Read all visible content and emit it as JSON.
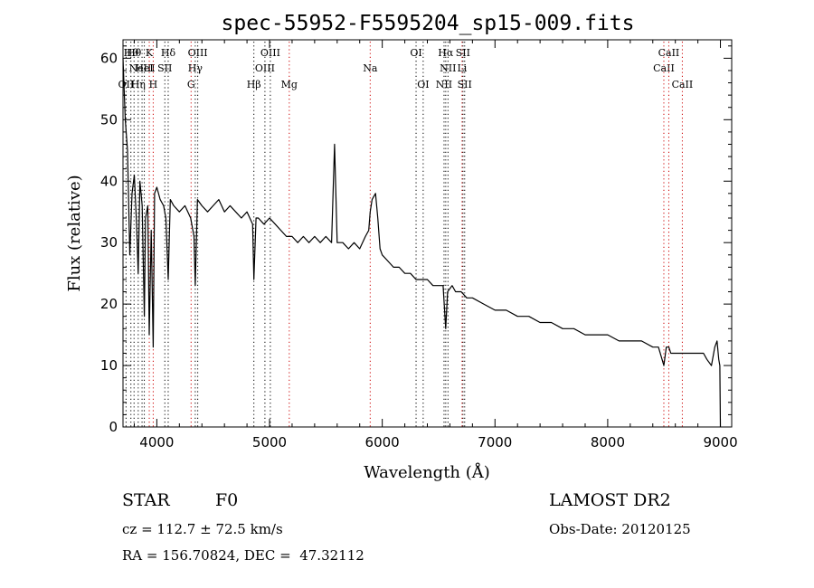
{
  "chart_data": {
    "type": "line",
    "title": "spec-55952-F5595204_sp15-009.fits",
    "xlabel": "Wavelength (Å)",
    "ylabel": "Flux (relative)",
    "xlim": [
      3700,
      9100
    ],
    "ylim": [
      0,
      63
    ],
    "xticks": [
      4000,
      5000,
      6000,
      7000,
      8000,
      9000
    ],
    "yticks": [
      0,
      10,
      20,
      30,
      40,
      50,
      60
    ],
    "grid": false,
    "series": [
      {
        "x": [
          3700,
          3720,
          3740,
          3760,
          3780,
          3800,
          3820,
          3835,
          3850,
          3870,
          3889,
          3900,
          3920,
          3933,
          3950,
          3968,
          3980,
          4000,
          4030,
          4060,
          4080,
          4101,
          4120,
          4150,
          4200,
          4250,
          4300,
          4330,
          4341,
          4360,
          4400,
          4450,
          4500,
          4550,
          4600,
          4650,
          4700,
          4750,
          4800,
          4850,
          4861,
          4880,
          4900,
          4950,
          5000,
          5050,
          5100,
          5150,
          5200,
          5250,
          5300,
          5350,
          5400,
          5450,
          5500,
          5550,
          5577,
          5600,
          5650,
          5700,
          5750,
          5800,
          5850,
          5880,
          5893,
          5910,
          5940,
          5960,
          5980,
          6000,
          6050,
          6100,
          6150,
          6200,
          6250,
          6300,
          6350,
          6400,
          6450,
          6500,
          6540,
          6563,
          6580,
          6620,
          6650,
          6700,
          6750,
          6800,
          6900,
          7000,
          7100,
          7200,
          7300,
          7400,
          7500,
          7600,
          7700,
          7800,
          7900,
          8000,
          8100,
          8200,
          8300,
          8400,
          8450,
          8498,
          8520,
          8542,
          8560,
          8600,
          8662,
          8700,
          8750,
          8800,
          8850,
          8880,
          8920,
          8950,
          8970,
          8985,
          8995,
          9000
        ],
        "y": [
          60,
          50,
          45,
          28,
          38,
          41,
          33,
          25,
          40,
          36,
          18,
          34,
          36,
          15,
          32,
          13,
          38,
          39,
          37,
          36,
          34,
          24,
          37,
          36,
          35,
          36,
          34,
          31,
          23,
          37,
          36,
          35,
          36,
          37,
          35,
          36,
          35,
          34,
          35,
          33,
          24,
          34,
          34,
          33,
          34,
          33,
          32,
          31,
          31,
          30,
          31,
          30,
          31,
          30,
          31,
          30,
          46,
          30,
          30,
          29,
          30,
          29,
          31,
          32,
          35,
          37,
          38,
          34,
          29,
          28,
          27,
          26,
          26,
          25,
          25,
          24,
          24,
          24,
          23,
          23,
          23,
          16,
          22,
          23,
          22,
          22,
          21,
          21,
          20,
          19,
          19,
          18,
          18,
          17,
          17,
          16,
          16,
          15,
          15,
          15,
          14,
          14,
          14,
          13,
          13,
          10,
          13,
          13,
          12,
          12,
          12,
          12,
          12,
          12,
          12,
          11,
          10,
          13,
          14,
          11,
          10,
          0
        ]
      }
    ],
    "lines": [
      {
        "x": 3727,
        "labels": [
          "OII"
        ],
        "row": 2,
        "color": "#000000"
      },
      {
        "x": 3770,
        "labels": [
          "Hθ"
        ],
        "row": 0,
        "color": "#000000"
      },
      {
        "x": 3798,
        "labels": [
          "Hθ"
        ],
        "row": 0,
        "color": "#000000"
      },
      {
        "x": 3835,
        "labels": [
          "Hη"
        ],
        "row": 2,
        "color": "#000000"
      },
      {
        "x": 3869,
        "labels": [
          "NeIII"
        ],
        "row": 1,
        "color": "#000000"
      },
      {
        "x": 3889,
        "labels": [
          "HeI"
        ],
        "row": 1,
        "color": "#000000"
      },
      {
        "x": 3933,
        "labels": [
          "K"
        ],
        "row": 0,
        "color": "#cc0000"
      },
      {
        "x": 3968,
        "labels": [
          "H"
        ],
        "row": 2,
        "color": "#cc0000"
      },
      {
        "x": 4071,
        "labels": [
          "SII"
        ],
        "row": 1,
        "color": "#000000"
      },
      {
        "x": 4101,
        "labels": [
          "Hδ"
        ],
        "row": 0,
        "color": "#000000"
      },
      {
        "x": 4304,
        "labels": [
          "G"
        ],
        "row": 2,
        "color": "#cc0000"
      },
      {
        "x": 4341,
        "labels": [
          "Hγ"
        ],
        "row": 1,
        "color": "#000000"
      },
      {
        "x": 4363,
        "labels": [
          "OIII"
        ],
        "row": 0,
        "color": "#000000"
      },
      {
        "x": 4861,
        "labels": [
          "Hβ"
        ],
        "row": 2,
        "color": "#000000"
      },
      {
        "x": 4959,
        "labels": [
          "OIII"
        ],
        "row": 1,
        "color": "#000000"
      },
      {
        "x": 5007,
        "labels": [
          "OIII"
        ],
        "row": 0,
        "color": "#000000"
      },
      {
        "x": 5175,
        "labels": [
          "Mg"
        ],
        "row": 2,
        "color": "#cc0000"
      },
      {
        "x": 5893,
        "labels": [
          "Na"
        ],
        "row": 1,
        "color": "#cc0000"
      },
      {
        "x": 6300,
        "labels": [
          "OI"
        ],
        "row": 0,
        "color": "#000000"
      },
      {
        "x": 6363,
        "labels": [
          "OI"
        ],
        "row": 2,
        "color": "#000000"
      },
      {
        "x": 6548,
        "labels": [
          "NII"
        ],
        "row": 2,
        "color": "#000000"
      },
      {
        "x": 6563,
        "labels": [
          "Hα"
        ],
        "row": 0,
        "color": "#000000"
      },
      {
        "x": 6583,
        "labels": [
          "NII"
        ],
        "row": 1,
        "color": "#000000"
      },
      {
        "x": 6708,
        "labels": [
          "Li"
        ],
        "row": 1,
        "color": "#cc0000"
      },
      {
        "x": 6716,
        "labels": [
          "SII"
        ],
        "row": 0,
        "color": "#000000"
      },
      {
        "x": 6731,
        "labels": [
          "SII"
        ],
        "row": 2,
        "color": "#000000"
      },
      {
        "x": 8498,
        "labels": [
          "CaII"
        ],
        "row": 1,
        "color": "#cc0000"
      },
      {
        "x": 8542,
        "labels": [
          "CaII"
        ],
        "row": 0,
        "color": "#cc0000"
      },
      {
        "x": 8662,
        "labels": [
          "CaII"
        ],
        "row": 2,
        "color": "#cc0000"
      }
    ]
  },
  "info": {
    "class": "STAR",
    "subclass": "F0",
    "survey": "LAMOST DR2",
    "cz": "cz = 112.7 ± 72.5 km/s",
    "obsdate": "Obs-Date: 20120125",
    "coords": "RA = 156.70824, DEC =  47.32112"
  }
}
